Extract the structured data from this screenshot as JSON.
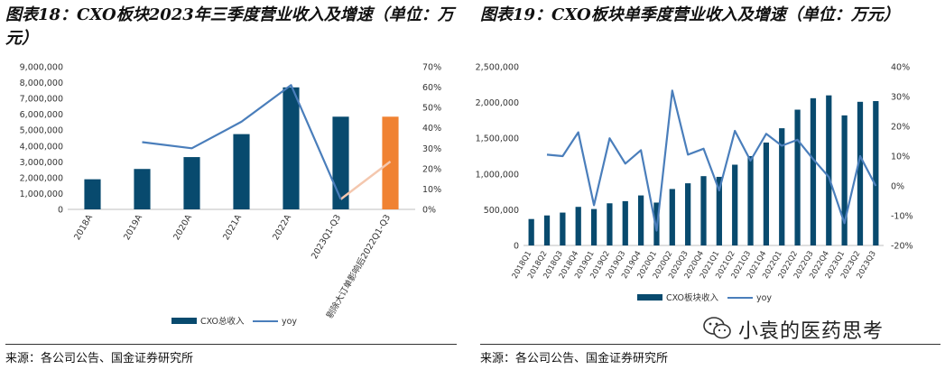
{
  "left": {
    "title": "图表18：CXO板块2023年三季度营业收入及增速（单位：万元）",
    "source": "来源：各公司公告、国金证券研究所"
  },
  "right": {
    "title": "图表19：CXO板块单季度营业收入及增速（单位：万元）",
    "source": "来源：各公司公告、国金证券研究所"
  },
  "watermark": "小袁的医药思考",
  "chart_data": [
    {
      "type": "bar",
      "categories": [
        "2018A",
        "2019A",
        "2020A",
        "2021A",
        "2022A",
        "2023Q1-Q3",
        "剔除大订单影响后2022Q1-Q3"
      ],
      "yticks": [
        "0",
        "1,000,000",
        "2,000,000",
        "3,000,000",
        "4,000,000",
        "5,000,000",
        "6,000,000",
        "7,000,000",
        "8,000,000",
        "9,000,000"
      ],
      "y2ticks": [
        "0%",
        "10%",
        "20%",
        "30%",
        "40%",
        "50%",
        "60%",
        "70%"
      ],
      "ylim": [
        0,
        9000000
      ],
      "y2lim": [
        0,
        0.7
      ],
      "series": [
        {
          "name": "CXO总收入",
          "kind": "bar",
          "axis": "left",
          "values": [
            1900000,
            2550000,
            3300000,
            4750000,
            7700000,
            5850000,
            5850000
          ],
          "colors": [
            "#084A6E",
            "#084A6E",
            "#084A6E",
            "#084A6E",
            "#084A6E",
            "#084A6E",
            "#F08232"
          ]
        },
        {
          "name": "yoy",
          "kind": "line",
          "axis": "right",
          "values": [
            null,
            0.33,
            0.3,
            0.43,
            0.61,
            0.05,
            null
          ],
          "color": "#4A7EBB"
        }
      ],
      "extra_line": {
        "from": [
          5,
          0.05
        ],
        "to": [
          6,
          0.235
        ],
        "color": "#F4C7AE"
      },
      "legend": "bottom"
    },
    {
      "type": "bar",
      "categories": [
        "2018Q1",
        "2018Q2",
        "2018Q3",
        "2018Q4",
        "2019Q1",
        "2019Q2",
        "2019Q3",
        "2019Q4",
        "2020Q1",
        "2020Q2",
        "2020Q3",
        "2020Q4",
        "2021Q1",
        "2021Q2",
        "2021Q3",
        "2021Q4",
        "2022Q1",
        "2022Q2",
        "2022Q3",
        "2022Q4",
        "2023Q1",
        "2023Q2",
        "2023Q3"
      ],
      "yticks": [
        "0",
        "500,000",
        "1,000,000",
        "1,500,000",
        "2,000,000",
        "2,500,000"
      ],
      "y2ticks": [
        "-20%",
        "-10%",
        "0%",
        "10%",
        "20%",
        "30%",
        "40%"
      ],
      "ylim": [
        0,
        2500000
      ],
      "y2lim": [
        -0.2,
        0.4
      ],
      "series": [
        {
          "name": "CXO板块收入",
          "kind": "bar",
          "axis": "left",
          "values": [
            370000,
            420000,
            460000,
            540000,
            510000,
            590000,
            620000,
            700000,
            600000,
            790000,
            870000,
            970000,
            960000,
            1130000,
            1250000,
            1440000,
            1640000,
            1900000,
            2060000,
            2100000,
            1820000,
            2010000,
            2020000
          ],
          "color": "#084A6E"
        },
        {
          "name": "yoy",
          "kind": "line",
          "axis": "right",
          "values": [
            null,
            0.105,
            0.1,
            0.18,
            -0.065,
            0.16,
            0.075,
            0.12,
            -0.15,
            0.32,
            0.105,
            0.125,
            -0.015,
            0.185,
            0.085,
            0.175,
            0.135,
            0.155,
            0.09,
            0.03,
            -0.125,
            0.1,
            0.0
          ],
          "color": "#4A7EBB"
        }
      ],
      "legend": "bottom"
    }
  ]
}
